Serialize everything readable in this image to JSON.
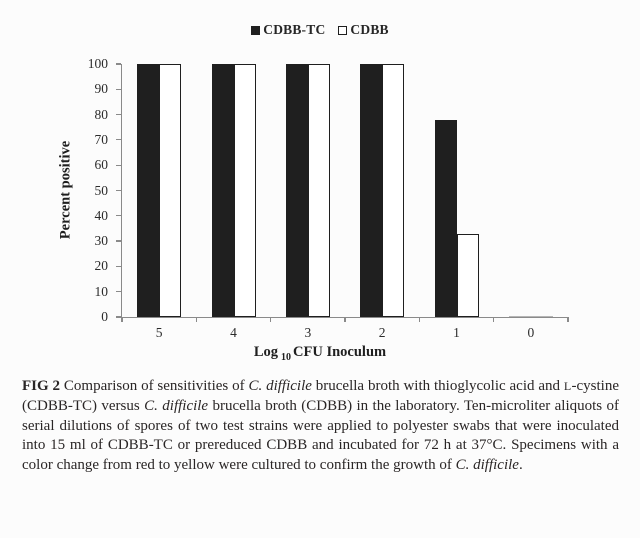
{
  "chart_data": {
    "type": "bar",
    "title": "",
    "categories": [
      "5",
      "4",
      "3",
      "2",
      "1",
      "0"
    ],
    "series": [
      {
        "name": "CDBB-TC",
        "fill": "#1f1f1f",
        "outline": "#1f1f1f",
        "values": [
          100,
          100,
          100,
          100,
          78,
          0
        ]
      },
      {
        "name": "CDBB",
        "fill": "#ffffff",
        "outline": "#1f1f1f",
        "values": [
          100,
          100,
          100,
          100,
          33,
          0
        ]
      }
    ],
    "xlabel_parts": {
      "prefix": "Log",
      "sub": "10",
      "suffix": "CFU Inoculum"
    },
    "ylabel": "Percent positive",
    "ylim": [
      0,
      100
    ],
    "ytick_step": 10,
    "grid": "off",
    "legend_position": "top-center",
    "colors": {
      "axis": "#8a8a8a",
      "text": "#262626",
      "zero_trace": "#b5b5b5"
    }
  },
  "figure": {
    "caption_segments": [
      {
        "text": "FIG 2",
        "style": "bold"
      },
      {
        "text": " Comparison of sensitivities of ",
        "style": "normal"
      },
      {
        "text": "C. difficile",
        "style": "italic"
      },
      {
        "text": " brucella broth with thioglycolic acid and ",
        "style": "normal"
      },
      {
        "text": "L",
        "style": "smallcaps"
      },
      {
        "text": "-cystine (CDBB-TC) versus ",
        "style": "normal"
      },
      {
        "text": "C. difficile",
        "style": "italic"
      },
      {
        "text": " brucella broth (CDBB) in the laboratory. Ten-microliter aliquots of serial dilutions of spores of two test strains were applied to polyester swabs that were inoculated into 15 ml of CDBB-TC or prereduced CDBB and incubated for 72 h at 37°C. Specimens with a color change from red to yellow were cultured to confirm the growth of ",
        "style": "normal"
      },
      {
        "text": "C. difficile",
        "style": "italic"
      },
      {
        "text": ".",
        "style": "normal"
      }
    ]
  }
}
